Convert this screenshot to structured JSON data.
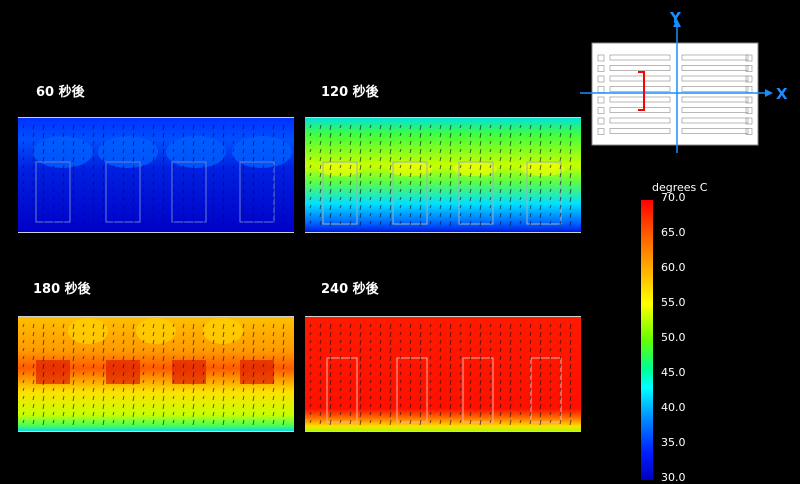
{
  "panels": [
    {
      "label": "60 秒後",
      "palette": "p60"
    },
    {
      "label": "120 秒後",
      "palette": "p120"
    },
    {
      "label": "180 秒後",
      "palette": "p180"
    },
    {
      "label": "240 秒後",
      "palette": "p240"
    }
  ],
  "diagram": {
    "axis_y": "Y",
    "axis_x": "X",
    "axis_color": "#1a8cff",
    "marker_color": "#ff0000"
  },
  "colorbar": {
    "title": "degrees C",
    "ticks": [
      "70.0",
      "65.0",
      "60.0",
      "55.0",
      "50.0",
      "45.0",
      "40.0",
      "35.0",
      "30.0"
    ]
  }
}
